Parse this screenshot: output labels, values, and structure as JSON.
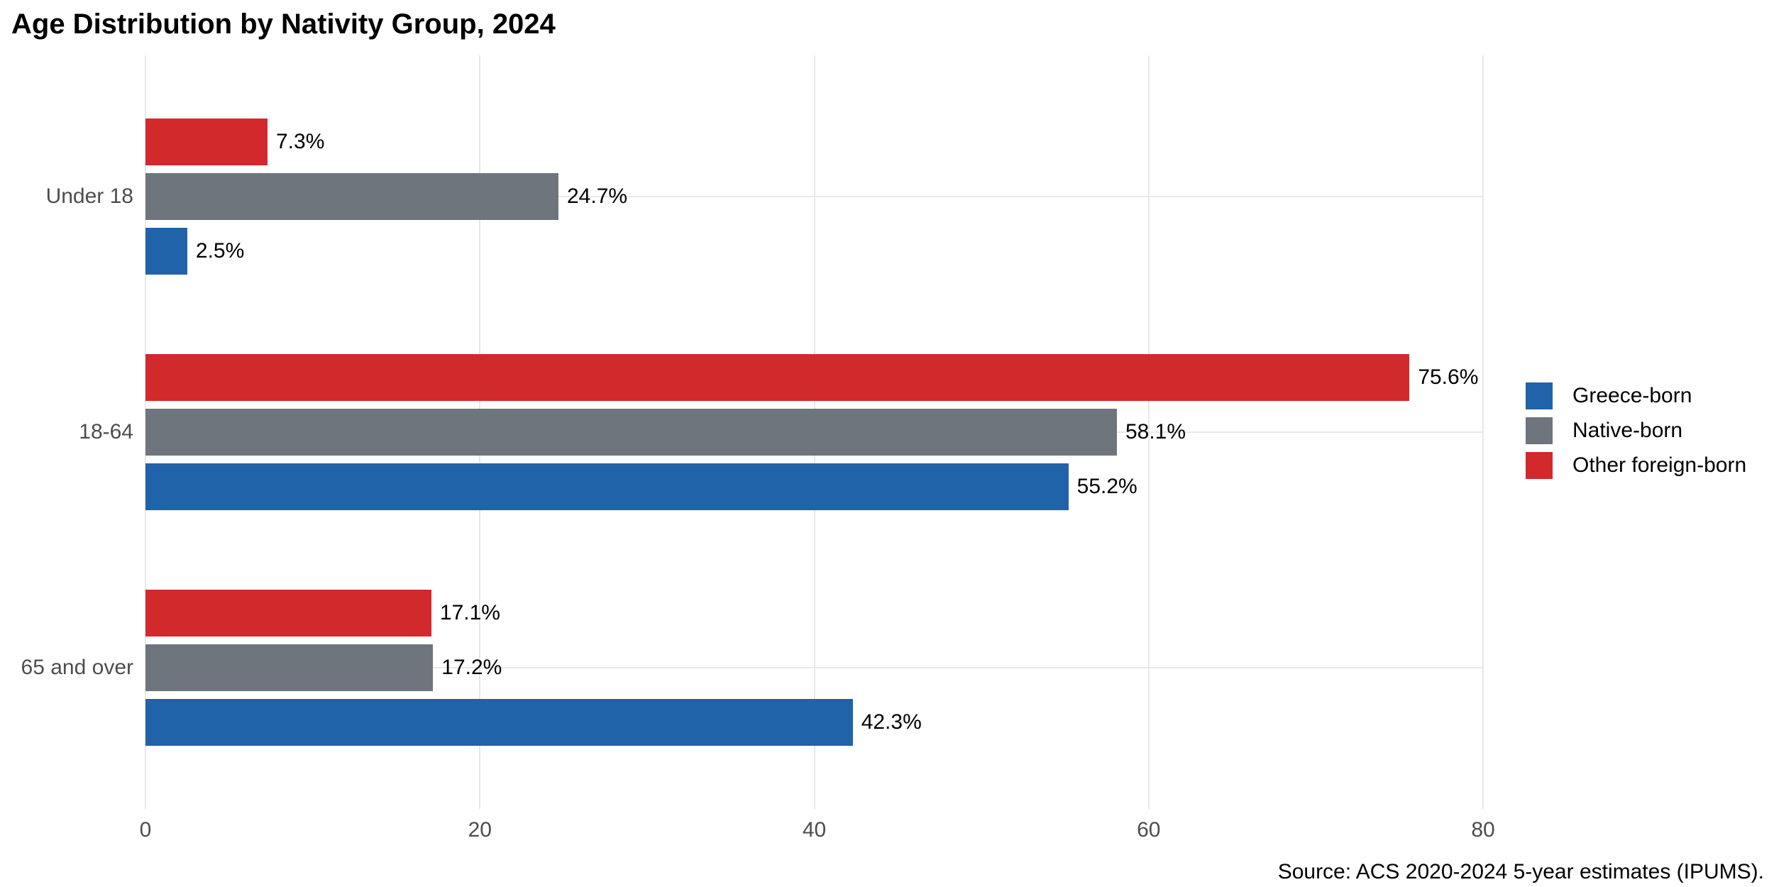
{
  "title": "Age Distribution by Nativity Group, 2024",
  "source_note": "Source: ACS 2020-2024 5-year estimates (IPUMS).",
  "colors": {
    "background": "#ffffff",
    "gridline": "#e8e8e8",
    "axis_text": "#4d4d4d",
    "value_text": "#000000",
    "title_text": "#000000"
  },
  "legend": {
    "position": "right",
    "items": [
      "Greece-born",
      "Native-born",
      "Other foreign-born"
    ]
  },
  "x_axis": {
    "tick_labels": [
      "0",
      "20",
      "40",
      "60",
      "80"
    ],
    "tick_values": [
      0,
      20,
      40,
      60,
      80
    ]
  },
  "chart_data": {
    "type": "bar",
    "orientation": "horizontal",
    "title": "Age Distribution by Nativity Group, 2024",
    "categories": [
      "Under 18",
      "18-64",
      "65 and over"
    ],
    "series": [
      {
        "name": "Greece-born",
        "color": "#2163a8",
        "values": [
          2.5,
          55.2,
          42.3
        ],
        "value_labels": [
          "2.5%",
          "55.2%",
          "42.3%"
        ]
      },
      {
        "name": "Native-born",
        "color": "#6e757d",
        "values": [
          24.7,
          58.1,
          17.2
        ],
        "value_labels": [
          "24.7%",
          "58.1%",
          "17.2%"
        ]
      },
      {
        "name": "Other foreign-born",
        "color": "#d2292d",
        "values": [
          7.3,
          75.6,
          17.1
        ],
        "value_labels": [
          "7.3%",
          "75.6%",
          "17.1%"
        ]
      }
    ],
    "bar_order_top_to_bottom": [
      "Other foreign-born",
      "Native-born",
      "Greece-born"
    ],
    "xlabel": "",
    "ylabel": "",
    "xlim": [
      0,
      80
    ],
    "x_ticks": [
      0,
      20,
      40,
      60,
      80
    ],
    "grid": true,
    "legend_position": "right"
  }
}
